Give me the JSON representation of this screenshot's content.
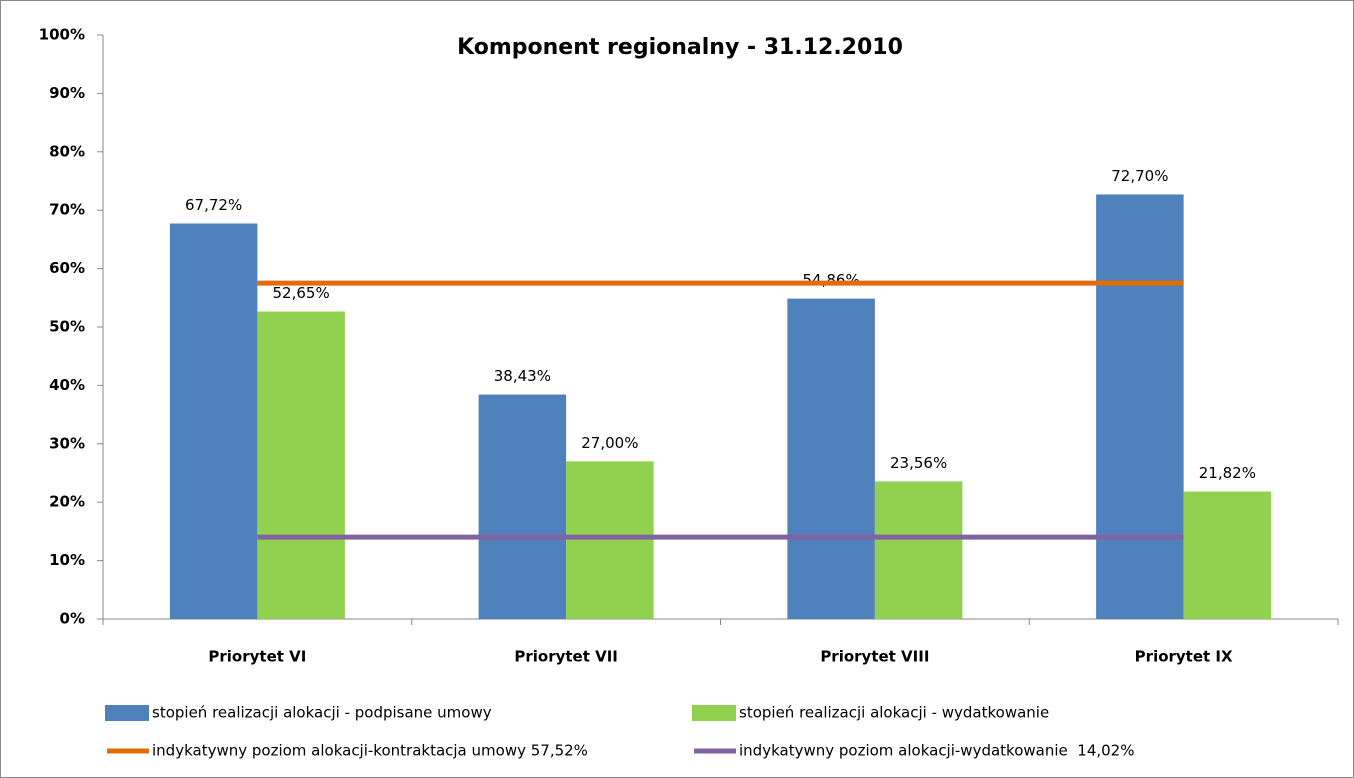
{
  "chart_data": {
    "type": "bar",
    "title": "Komponent regionalny - 31.12.2010",
    "categories": [
      "Priorytet VI",
      "Priorytet VII",
      "Priorytet VIII",
      "Priorytet IX"
    ],
    "series": [
      {
        "name": "stopień realizacji alokacji - podpisane umowy",
        "type": "bar",
        "color": "#4f81bd",
        "values": [
          67.72,
          38.43,
          54.86,
          72.7
        ],
        "value_labels": [
          "67,72%",
          "38,43%",
          "54,86%",
          "72,70%"
        ]
      },
      {
        "name": "stopień realizacji alokacji - wydatkowanie",
        "type": "bar",
        "color": "#92d050",
        "values": [
          52.65,
          27.0,
          23.56,
          21.82
        ],
        "value_labels": [
          "52,65%",
          "27,00%",
          "23,56%",
          "21,82%"
        ]
      },
      {
        "name": "indykatywny poziom alokacji-kontraktacja umowy 57,52%",
        "type": "line",
        "color": "#e36c09",
        "values": [
          57.52,
          57.52,
          57.52,
          57.52
        ]
      },
      {
        "name": "indykatywny poziom alokacji-wydatkowanie  14,02%",
        "type": "line",
        "color": "#8064a2",
        "values": [
          14.02,
          14.02,
          14.02,
          14.02
        ]
      }
    ],
    "ylim": [
      0,
      100
    ],
    "yticks": [
      {
        "value": 0,
        "label": "0%"
      },
      {
        "value": 10,
        "label": "10%"
      },
      {
        "value": 20,
        "label": "20%"
      },
      {
        "value": 30,
        "label": "30%"
      },
      {
        "value": 40,
        "label": "40%"
      },
      {
        "value": 50,
        "label": "50%"
      },
      {
        "value": 60,
        "label": "60%"
      },
      {
        "value": 70,
        "label": "70%"
      },
      {
        "value": 80,
        "label": "80%"
      },
      {
        "value": 90,
        "label": "90%"
      },
      {
        "value": 100,
        "label": "100%"
      }
    ],
    "grid": false,
    "legend": "bottom"
  }
}
